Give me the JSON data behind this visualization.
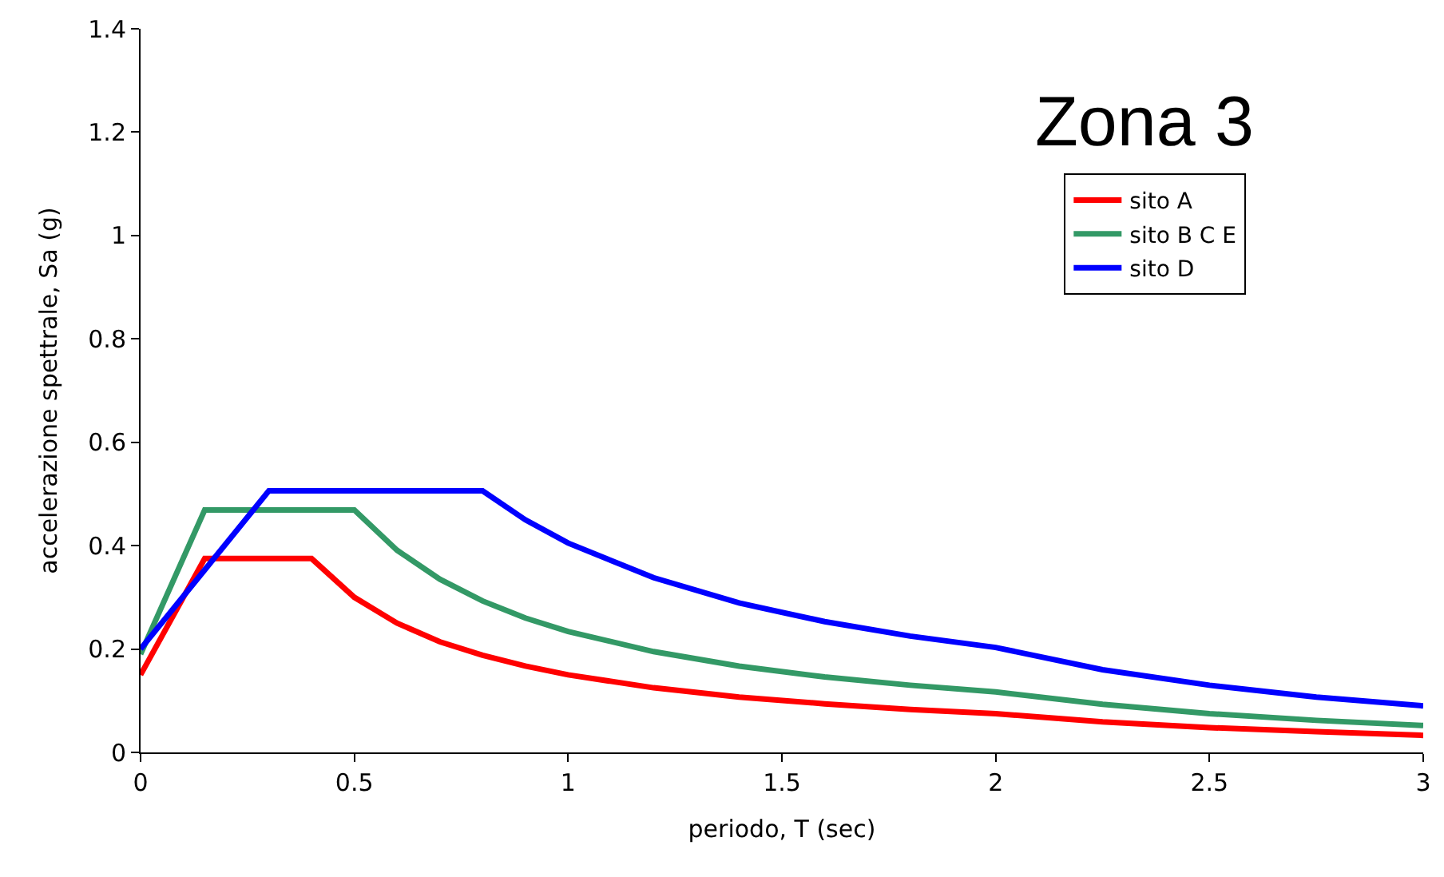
{
  "chart_data": {
    "type": "line",
    "xlabel": "periodo, T (sec)",
    "ylabel": "accelerazione spettrale, Sa (g)",
    "annotations": [
      "Zona 3"
    ],
    "xlim": [
      0,
      3
    ],
    "xticks": [
      0,
      0.5,
      1,
      1.5,
      2,
      2.5,
      3
    ],
    "ylim": [
      0,
      1.4
    ],
    "yticks": [
      0,
      0.2,
      0.4,
      0.6,
      0.8,
      1,
      1.2,
      1.4
    ],
    "legend": "right",
    "marker": "none",
    "line_style": "solid",
    "series": [
      {
        "name": "sito A",
        "color": "#ff0000",
        "x": [
          0,
          0.15,
          0.4,
          0.5,
          0.6,
          0.7,
          0.8,
          0.9,
          1.0,
          1.2,
          1.4,
          1.6,
          1.8,
          2.0,
          2.25,
          2.5,
          2.75,
          3.0
        ],
        "values": [
          0.15,
          0.375,
          0.375,
          0.3,
          0.25,
          0.214,
          0.188,
          0.167,
          0.15,
          0.125,
          0.107,
          0.094,
          0.083,
          0.075,
          0.059,
          0.048,
          0.04,
          0.033
        ]
      },
      {
        "name": "sito B C E",
        "color": "#339966",
        "x": [
          0,
          0.15,
          0.5,
          0.6,
          0.7,
          0.8,
          0.9,
          1.0,
          1.2,
          1.4,
          1.6,
          1.8,
          2.0,
          2.25,
          2.5,
          2.75,
          3.0
        ],
        "values": [
          0.19,
          0.469,
          0.469,
          0.391,
          0.335,
          0.293,
          0.26,
          0.234,
          0.195,
          0.167,
          0.146,
          0.13,
          0.117,
          0.093,
          0.075,
          0.062,
          0.052
        ]
      },
      {
        "name": "sito D",
        "color": "#0000ff",
        "x": [
          0,
          0.3,
          0.8,
          0.9,
          1.0,
          1.2,
          1.4,
          1.6,
          1.8,
          2.0,
          2.25,
          2.5,
          2.75,
          3.0
        ],
        "values": [
          0.2,
          0.506,
          0.506,
          0.45,
          0.405,
          0.338,
          0.289,
          0.253,
          0.225,
          0.203,
          0.16,
          0.13,
          0.107,
          0.09
        ]
      }
    ]
  }
}
